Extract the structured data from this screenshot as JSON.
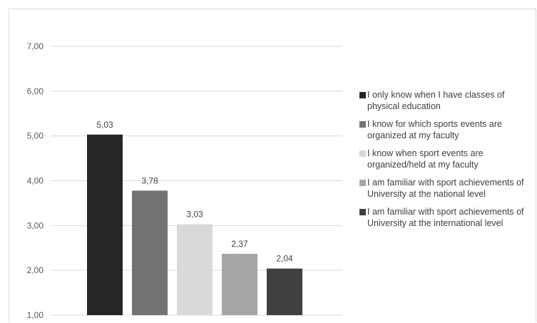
{
  "chart_data": {
    "type": "bar",
    "title": "",
    "xlabel": "",
    "ylabel": "",
    "ylim": [
      1,
      7
    ],
    "y_ticks": [
      "1,00",
      "2,00",
      "3,00",
      "4,00",
      "5,00",
      "6,00",
      "7,00"
    ],
    "grid": true,
    "legend_position": "right",
    "series": [
      {
        "name": "I only know when I have classes of physical education",
        "value": 5.03,
        "label": "5,03",
        "color": "#262626"
      },
      {
        "name": "I know for which sports events are organized at my faculty",
        "value": 3.78,
        "label": "3,78",
        "color": "#737373"
      },
      {
        "name": "I know when sport events are organized/held at my faculty",
        "value": 3.03,
        "label": "3,03",
        "color": "#d9d9d9"
      },
      {
        "name": "I am familiar with sport achievements of University at the national level",
        "value": 2.37,
        "label": "2,37",
        "color": "#a6a6a6"
      },
      {
        "name": "I am familiar with sport achievements of University at the international level",
        "value": 2.04,
        "label": "2,04",
        "color": "#404040"
      }
    ]
  }
}
